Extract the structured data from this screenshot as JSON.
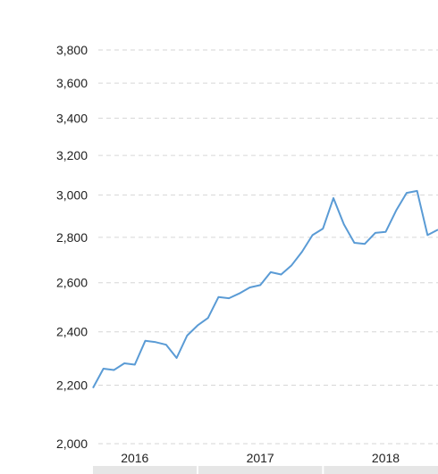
{
  "chart_data": {
    "type": "line",
    "title": "",
    "xlabel": "",
    "ylabel": "",
    "y_scale": "log",
    "ylim": [
      2000,
      3800
    ],
    "y_ticks": [
      {
        "value": 2000,
        "label": "2,000"
      },
      {
        "value": 2200,
        "label": "2,200"
      },
      {
        "value": 2400,
        "label": "2,400"
      },
      {
        "value": 2600,
        "label": "2,600"
      },
      {
        "value": 2800,
        "label": "2,800"
      },
      {
        "value": 3000,
        "label": "3,000"
      },
      {
        "value": 3200,
        "label": "3,200"
      },
      {
        "value": 3400,
        "label": "3,400"
      },
      {
        "value": 3600,
        "label": "3,600"
      },
      {
        "value": 3800,
        "label": "3,800"
      }
    ],
    "x_ticks": [
      {
        "value": "2016-01",
        "label": "2016"
      },
      {
        "value": "2017-01",
        "label": "2017"
      },
      {
        "value": "2018-01",
        "label": "2018"
      }
    ],
    "xlim": [
      "2015-09",
      "2018-06"
    ],
    "grid": true,
    "line_color": "#5a9bd5",
    "series": [
      {
        "x": [
          "2015-09",
          "2015-10",
          "2015-11",
          "2015-12",
          "2016-01",
          "2016-02",
          "2016-03",
          "2016-04",
          "2016-05",
          "2016-06",
          "2016-07",
          "2016-08",
          "2016-09",
          "2016-10",
          "2016-11",
          "2016-12",
          "2017-01",
          "2017-02",
          "2017-03",
          "2017-04",
          "2017-05",
          "2017-06",
          "2017-07",
          "2017-08",
          "2017-09",
          "2017-10",
          "2017-11",
          "2017-12",
          "2018-01",
          "2018-02",
          "2018-03",
          "2018-04",
          "2018-05",
          "2018-06"
        ],
        "values": [
          2190,
          2260,
          2255,
          2280,
          2275,
          2365,
          2360,
          2350,
          2300,
          2385,
          2425,
          2455,
          2540,
          2535,
          2555,
          2580,
          2590,
          2645,
          2635,
          2675,
          2735,
          2810,
          2840,
          2985,
          2860,
          2775,
          2770,
          2820,
          2825,
          2925,
          3010,
          3020,
          2810,
          2835
        ]
      }
    ]
  }
}
